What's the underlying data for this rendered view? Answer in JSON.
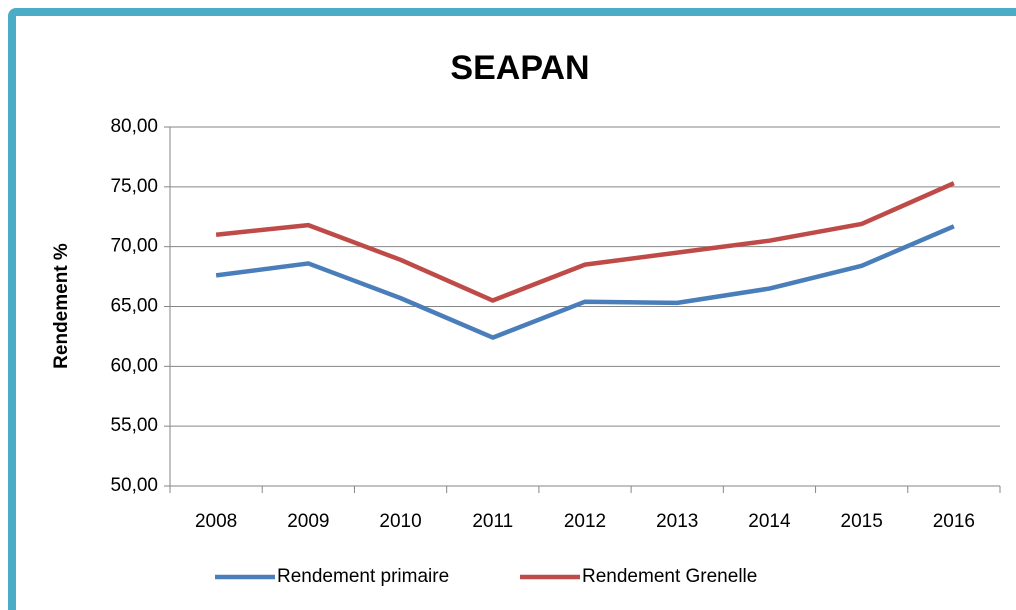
{
  "chart_data": {
    "type": "line",
    "title": "SEAPAN",
    "ylabel": "Rendement %",
    "categories": [
      "2008",
      "2009",
      "2010",
      "2011",
      "2012",
      "2013",
      "2014",
      "2015",
      "2016"
    ],
    "series": [
      {
        "name": "Rendement primaire",
        "color": "#4a7ebb",
        "values": [
          67.6,
          68.6,
          65.7,
          62.4,
          65.4,
          65.3,
          66.5,
          68.4,
          71.7
        ]
      },
      {
        "name": "Rendement Grenelle",
        "color": "#be4b48",
        "values": [
          71.0,
          71.8,
          68.9,
          65.5,
          68.5,
          69.5,
          70.5,
          71.9,
          75.3
        ]
      }
    ],
    "ylim": [
      50,
      80
    ],
    "yticks": [
      {
        "value": 50,
        "label": "50,00"
      },
      {
        "value": 55,
        "label": "55,00"
      },
      {
        "value": 60,
        "label": "60,00"
      },
      {
        "value": 65,
        "label": "65,00"
      },
      {
        "value": 70,
        "label": "70,00"
      },
      {
        "value": 75,
        "label": "75,00"
      },
      {
        "value": 80,
        "label": "80,00"
      }
    ],
    "grid": true,
    "legend": "bottom"
  }
}
